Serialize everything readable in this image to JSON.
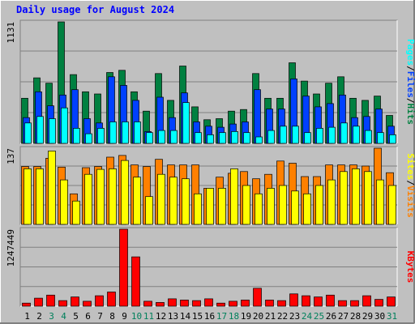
{
  "chart_data": {
    "type": "bar",
    "title": "Daily usage for August 2024",
    "categories": [
      "1",
      "2",
      "3",
      "4",
      "5",
      "6",
      "7",
      "8",
      "9",
      "10",
      "11",
      "12",
      "13",
      "14",
      "15",
      "16",
      "17",
      "18",
      "19",
      "20",
      "21",
      "22",
      "23",
      "24",
      "25",
      "26",
      "27",
      "28",
      "29",
      "30",
      "31"
    ],
    "weekend_days": [
      "3",
      "4",
      "10",
      "11",
      "17",
      "18",
      "24",
      "25",
      "31"
    ],
    "panels": [
      {
        "id": "hits",
        "ymax_label": "1131",
        "ymax": 1131,
        "ylabel_parts": [
          "Pages",
          "/",
          "Files",
          "/",
          "Hits"
        ],
        "series": [
          {
            "name": "Hits",
            "color": "#008040",
            "values": [
              420,
              610,
              560,
              1131,
              640,
              480,
              460,
              660,
              680,
              480,
              300,
              650,
              400,
              720,
              340,
              220,
              230,
              300,
              315,
              650,
              420,
              420,
              750,
              580,
              460,
              560,
              620,
              420,
              400,
              440,
              260
            ]
          },
          {
            "name": "Files",
            "color": "#0040ff",
            "values": [
              240,
              480,
              350,
              450,
              500,
              230,
              190,
              620,
              540,
              400,
              110,
              430,
              240,
              470,
              200,
              160,
              150,
              180,
              200,
              500,
              320,
              320,
              600,
              440,
              340,
              370,
              450,
              240,
              250,
              320,
              160
            ]
          },
          {
            "name": "Pages",
            "color": "#00ffff",
            "values": [
              190,
              250,
              230,
              330,
              140,
              90,
              140,
              200,
              200,
              200,
              100,
              120,
              120,
              380,
              100,
              80,
              100,
              110,
              100,
              60,
              120,
              160,
              160,
              100,
              140,
              150,
              190,
              160,
              120,
              100,
              80
            ]
          }
        ]
      },
      {
        "id": "visits",
        "ymax_label": "137",
        "ymax": 137,
        "ylabel_parts": [
          "Sites",
          "/",
          "Visits"
        ],
        "series": [
          {
            "name": "Visits",
            "color": "#ff8000",
            "values": [
              104,
              104,
              119,
              103,
              55,
              102,
              104,
              121,
              124,
              107,
              104,
              117,
              107,
              107,
              107,
              65,
              85,
              92,
              95,
              82,
              90,
              114,
              110,
              86,
              86,
              107,
              107,
              107,
              105,
              137,
              93
            ]
          },
          {
            "name": "Sites",
            "color": "#ffff00",
            "values": [
              100,
              100,
              132,
              80,
              42,
              90,
              99,
              100,
              115,
              85,
              50,
              90,
              85,
              82,
              55,
              65,
              65,
              100,
              70,
              55,
              65,
              70,
              60,
              55,
              70,
              80,
              95,
              100,
              95,
              80,
              70
            ]
          }
        ]
      },
      {
        "id": "kbytes",
        "ymax_label": "1247449",
        "ymax": 1247449,
        "ylabel_parts": [
          "KBytes"
        ],
        "series": [
          {
            "name": "KBytes",
            "color": "#ff0000",
            "values": [
              50000,
              130000,
              180000,
              90000,
              150000,
              80000,
              170000,
              230000,
              1247449,
              800000,
              80000,
              60000,
              120000,
              100000,
              90000,
              120000,
              50000,
              80000,
              100000,
              290000,
              100000,
              90000,
              200000,
              170000,
              150000,
              180000,
              90000,
              90000,
              170000,
              110000,
              150000
            ]
          }
        ]
      }
    ]
  },
  "colors": {
    "background": "#c0c0c0",
    "frame_light": "#ffffff",
    "frame_dark": "#808080",
    "grid": "#808080",
    "title_text": "#0000ff",
    "day_text": "#000000",
    "weekend_day_text": "#00805c"
  }
}
